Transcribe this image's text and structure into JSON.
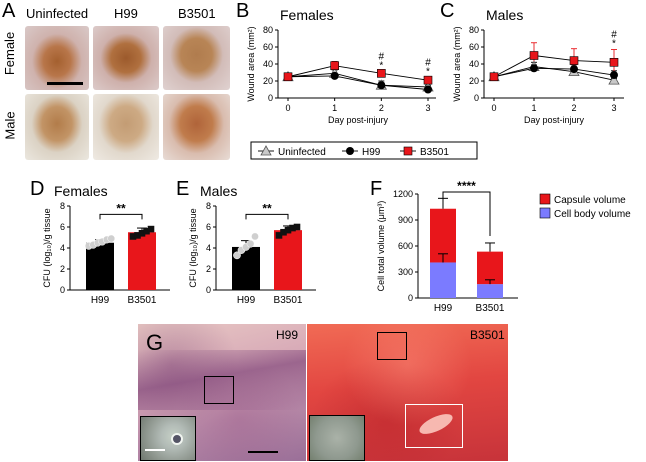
{
  "colors": {
    "uninfected": "#9a9a9a",
    "h99": "#000000",
    "b3501": "#e8161b",
    "capsule": "#e8161b",
    "cell_body": "#7b7bff",
    "skin": "#d8c6c4",
    "wound": "#a55a2e"
  },
  "panelA": {
    "letter": "A",
    "col_labels": [
      "Uninfected",
      "H99",
      "B3501"
    ],
    "row_labels": [
      "Female",
      "Male"
    ]
  },
  "panelB": {
    "letter": "B",
    "title": "Females"
  },
  "panelC": {
    "letter": "C",
    "title": "Males"
  },
  "legend": {
    "items": [
      "Uninfected",
      "H99",
      "B3501"
    ]
  },
  "panelD": {
    "letter": "D",
    "title": "Females"
  },
  "panelE": {
    "letter": "E",
    "title": "Males"
  },
  "panelF": {
    "letter": "F"
  },
  "panelG": {
    "letter": "G",
    "labels": [
      "H99",
      "B3501"
    ]
  },
  "chart_data": [
    {
      "id": "B",
      "type": "line",
      "title": "Females",
      "xlabel": "Day post-injury",
      "ylabel": "Wound area (mm²)",
      "x": [
        0,
        1,
        2,
        3
      ],
      "xticks": [
        "0",
        "1",
        "2",
        "3"
      ],
      "yticks": [
        "0",
        "20",
        "40",
        "60",
        "80"
      ],
      "ylim": [
        0,
        80
      ],
      "series": [
        {
          "name": "Uninfected",
          "marker": "triangle",
          "values": [
            25,
            29,
            15,
            13
          ],
          "err": [
            0,
            4,
            3,
            2
          ]
        },
        {
          "name": "H99",
          "marker": "circle",
          "values": [
            25,
            26,
            15,
            10
          ],
          "err": [
            0,
            3,
            5,
            2
          ]
        },
        {
          "name": "B3501",
          "marker": "square",
          "values": [
            25,
            38,
            29,
            21
          ],
          "err": [
            0,
            5,
            2,
            3
          ]
        }
      ],
      "annotations": [
        {
          "x": 2,
          "text": "#"
        },
        {
          "x": 2,
          "text": "*"
        },
        {
          "x": 3,
          "text": "#"
        },
        {
          "x": 3,
          "text": "*"
        }
      ]
    },
    {
      "id": "C",
      "type": "line",
      "title": "Males",
      "xlabel": "Day post-injury",
      "ylabel": "Wound area (mm²)",
      "x": [
        0,
        1,
        2,
        3
      ],
      "xticks": [
        "0",
        "1",
        "2",
        "3"
      ],
      "yticks": [
        "0",
        "20",
        "40",
        "60",
        "80"
      ],
      "ylim": [
        0,
        80
      ],
      "series": [
        {
          "name": "Uninfected",
          "marker": "triangle",
          "values": [
            25,
            37,
            31,
            21
          ],
          "err": [
            0,
            5,
            3,
            2
          ]
        },
        {
          "name": "H99",
          "marker": "circle",
          "values": [
            25,
            35,
            34,
            27
          ],
          "err": [
            0,
            4,
            5,
            5
          ]
        },
        {
          "name": "B3501",
          "marker": "square",
          "values": [
            25,
            50,
            44,
            42
          ],
          "err": [
            0,
            15,
            14,
            15
          ]
        }
      ],
      "annotations": [
        {
          "x": 3,
          "text": "#"
        },
        {
          "x": 3,
          "text": "*"
        }
      ]
    },
    {
      "id": "D",
      "type": "bar",
      "title": "Females",
      "xlabel": "",
      "ylabel": "CFU (log₁₀)/g tissue",
      "categories": [
        "H99",
        "B3501"
      ],
      "values": [
        4.5,
        5.5
      ],
      "err": [
        0.3,
        0.4
      ],
      "points": [
        [
          4.2,
          4.3,
          4.5,
          4.6,
          4.8,
          4.9
        ],
        [
          5.1,
          5.2,
          5.4,
          5.6,
          5.8
        ]
      ],
      "yticks": [
        "0",
        "2",
        "4",
        "6",
        "8"
      ],
      "ylim": [
        0,
        8
      ],
      "significance": "**"
    },
    {
      "id": "E",
      "type": "bar",
      "title": "Males",
      "xlabel": "",
      "ylabel": "CFU (log₁₀)/g tissue",
      "categories": [
        "H99",
        "B3501"
      ],
      "values": [
        4.1,
        5.7
      ],
      "err": [
        0.6,
        0.4
      ],
      "points": [
        [
          3.3,
          3.8,
          4.1,
          4.4,
          5.1
        ],
        [
          5.2,
          5.5,
          5.7,
          5.9,
          6.0
        ]
      ],
      "yticks": [
        "0",
        "2",
        "4",
        "6",
        "8"
      ],
      "ylim": [
        0,
        8
      ],
      "significance": "**"
    },
    {
      "id": "F",
      "type": "bar",
      "title": "",
      "xlabel": "",
      "ylabel": "Cell total volume (μm³)",
      "categories": [
        "H99",
        "B3501"
      ],
      "series": [
        {
          "name": "Cell body volume",
          "values": [
            410,
            160
          ],
          "err": [
            100,
            50
          ]
        },
        {
          "name": "Capsule volume",
          "values": [
            620,
            375
          ],
          "err": [
            120,
            100
          ]
        }
      ],
      "totals": [
        1030,
        535
      ],
      "yticks": [
        "0",
        "300",
        "600",
        "900",
        "1200"
      ],
      "ylim": [
        0,
        1200
      ],
      "legend": [
        "Capsule volume",
        "Cell body volume"
      ],
      "significance": "****"
    }
  ]
}
